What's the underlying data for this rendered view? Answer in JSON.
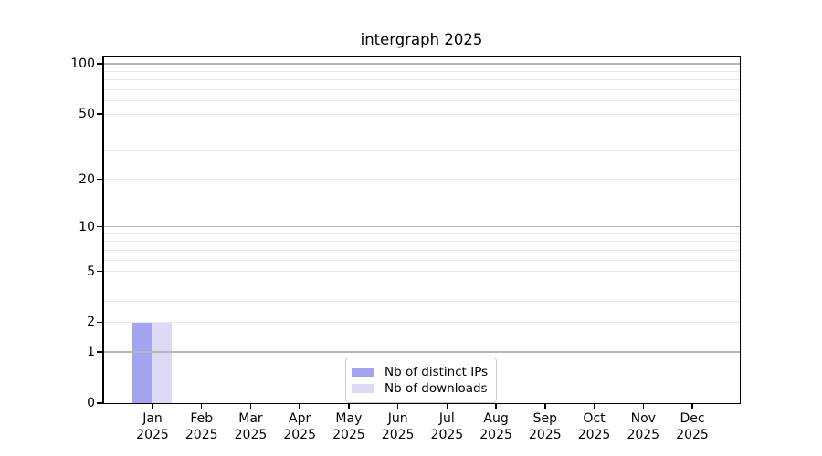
{
  "chart_data": {
    "type": "bar",
    "title": "intergraph 2025",
    "categories": [
      "Jan",
      "Feb",
      "Mar",
      "Apr",
      "May",
      "Jun",
      "Jul",
      "Aug",
      "Sep",
      "Oct",
      "Nov",
      "Dec"
    ],
    "x_year_label": "2025",
    "series": [
      {
        "name": "Nb of distinct IPs",
        "color": "#a4a4ee",
        "values": [
          2,
          0,
          0,
          0,
          0,
          0,
          0,
          0,
          0,
          0,
          0,
          0
        ]
      },
      {
        "name": "Nb of downloads",
        "color": "#dbdbf8",
        "values": [
          2,
          0,
          0,
          0,
          0,
          0,
          0,
          0,
          0,
          0,
          0,
          0
        ]
      }
    ],
    "y_scale": "log1p",
    "ylim": [
      0,
      110
    ],
    "y_ticks": [
      0,
      1,
      2,
      5,
      10,
      20,
      50,
      100
    ],
    "grid": "on",
    "grid_major_values": [
      1,
      10,
      100
    ],
    "grid_minor_values": [
      2,
      3,
      4,
      5,
      6,
      7,
      8,
      9,
      20,
      30,
      40,
      50,
      60,
      70,
      80,
      90
    ],
    "grid_above_bars": true,
    "legend_position": "lower center",
    "colors": {
      "grid_major": "#b5b5b5",
      "grid_minor": "#e7e7e7",
      "axis": "#000000",
      "background": "#ffffff"
    }
  }
}
